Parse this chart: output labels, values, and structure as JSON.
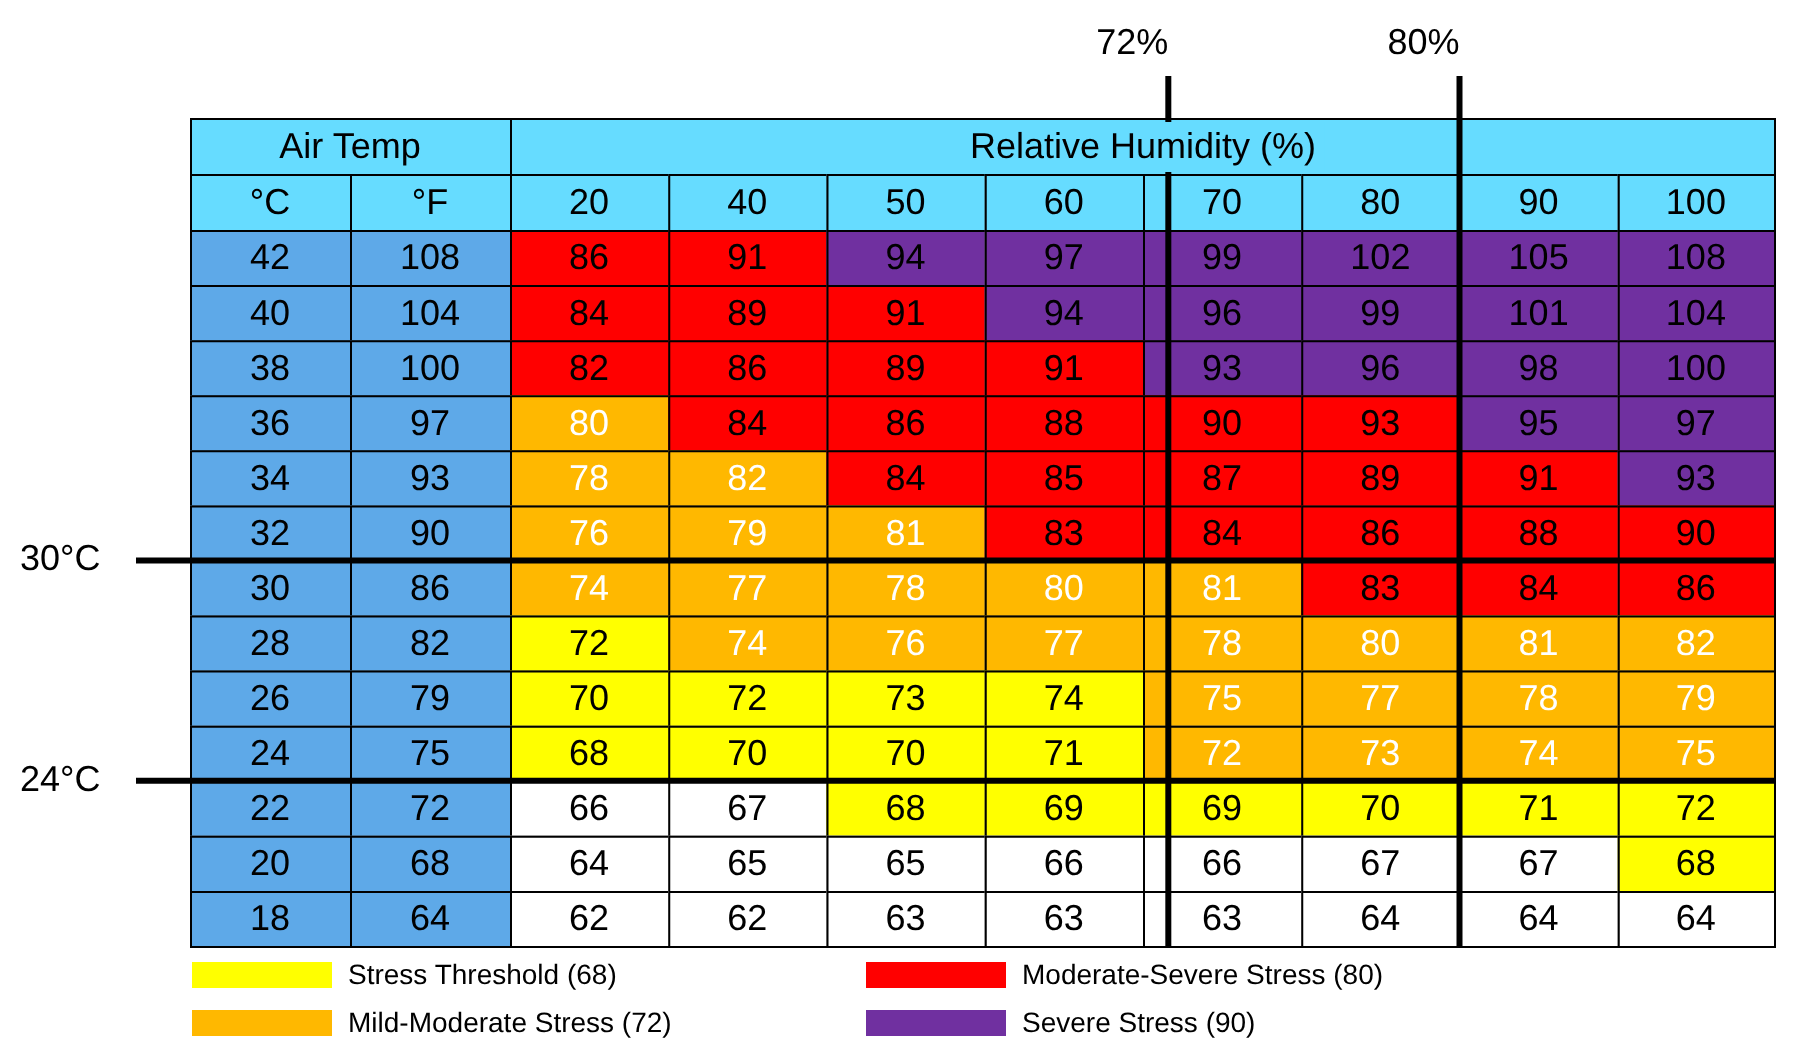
{
  "chart_data": {
    "type": "heatmap",
    "xlabel": "Relative Humidity (%)",
    "ylabel": "Air Temp",
    "data_labels": true,
    "annotations": [
      "°C",
      "°F",
      "30°C",
      "24°C",
      "72%",
      "80%"
    ],
    "categories": [
      "20",
      "40",
      "50",
      "60",
      "70",
      "80",
      "90",
      "100"
    ],
    "y_categories": [
      "42",
      "40",
      "38",
      "36",
      "34",
      "32",
      "30",
      "28",
      "26",
      "24",
      "22",
      "20",
      "18"
    ],
    "y2_categories": [
      "108",
      "104",
      "100",
      "97",
      "93",
      "90",
      "86",
      "82",
      "79",
      "75",
      "72",
      "68",
      "64"
    ],
    "cells": [
      [
        86,
        91,
        94,
        97,
        99,
        102,
        105,
        108
      ],
      [
        84,
        89,
        91,
        94,
        96,
        99,
        101,
        104
      ],
      [
        82,
        86,
        89,
        91,
        93,
        96,
        98,
        100
      ],
      [
        80,
        84,
        86,
        88,
        90,
        93,
        95,
        97
      ],
      [
        78,
        82,
        84,
        85,
        87,
        89,
        91,
        93
      ],
      [
        76,
        79,
        81,
        83,
        84,
        86,
        88,
        90
      ],
      [
        74,
        77,
        78,
        80,
        81,
        83,
        84,
        86
      ],
      [
        72,
        74,
        76,
        77,
        78,
        80,
        81,
        82
      ],
      [
        70,
        72,
        73,
        74,
        75,
        77,
        78,
        79
      ],
      [
        68,
        70,
        70,
        71,
        72,
        73,
        74,
        75
      ],
      [
        66,
        67,
        68,
        69,
        69,
        70,
        71,
        72
      ],
      [
        64,
        65,
        65,
        66,
        66,
        67,
        67,
        68
      ],
      [
        62,
        62,
        63,
        63,
        63,
        64,
        64,
        64
      ]
    ],
    "colors": [
      [
        "#ff0000",
        "#ff0000",
        "#7030a0",
        "#7030a0",
        "#7030a0",
        "#7030a0",
        "#7030a0",
        "#7030a0"
      ],
      [
        "#ff0000",
        "#ff0000",
        "#ff0000",
        "#7030a0",
        "#7030a0",
        "#7030a0",
        "#7030a0",
        "#7030a0"
      ],
      [
        "#ff0000",
        "#ff0000",
        "#ff0000",
        "#ff0000",
        "#7030a0",
        "#7030a0",
        "#7030a0",
        "#7030a0"
      ],
      [
        "#ffb800",
        "#ff0000",
        "#ff0000",
        "#ff0000",
        "#ff0000",
        "#ff0000",
        "#7030a0",
        "#7030a0"
      ],
      [
        "#ffb800",
        "#ffb800",
        "#ff0000",
        "#ff0000",
        "#ff0000",
        "#ff0000",
        "#ff0000",
        "#7030a0"
      ],
      [
        "#ffb800",
        "#ffb800",
        "#ffb800",
        "#ff0000",
        "#ff0000",
        "#ff0000",
        "#ff0000",
        "#ff0000"
      ],
      [
        "#ffb800",
        "#ffb800",
        "#ffb800",
        "#ffb800",
        "#ffb800",
        "#ff0000",
        "#ff0000",
        "#ff0000"
      ],
      [
        "#ffff00",
        "#ffb800",
        "#ffb800",
        "#ffb800",
        "#ffb800",
        "#ffb800",
        "#ffb800",
        "#ffb800"
      ],
      [
        "#ffff00",
        "#ffff00",
        "#ffff00",
        "#ffff00",
        "#ffb800",
        "#ffb800",
        "#ffb800",
        "#ffb800"
      ],
      [
        "#ffff00",
        "#ffff00",
        "#ffff00",
        "#ffff00",
        "#ffb800",
        "#ffb800",
        "#ffb800",
        "#ffb800"
      ],
      [
        "#ffffff",
        "#ffffff",
        "#ffff00",
        "#ffff00",
        "#ffff00",
        "#ffff00",
        "#ffff00",
        "#ffff00"
      ],
      [
        "#ffffff",
        "#ffffff",
        "#ffffff",
        "#ffffff",
        "#ffffff",
        "#ffffff",
        "#ffffff",
        "#ffff00"
      ],
      [
        "#ffffff",
        "#ffffff",
        "#ffffff",
        "#ffffff",
        "#ffffff",
        "#ffffff",
        "#ffffff",
        "#ffffff"
      ]
    ],
    "series": [
      {
        "name": "Stress Threshold (68)",
        "color": "#ffff00",
        "values": [
          null,
          null,
          null,
          null,
          null,
          null,
          null,
          null
        ]
      },
      {
        "name": "Mild-Moderate Stress (72)",
        "color": "#ffb800",
        "values": [
          null,
          null,
          null,
          null,
          null,
          null,
          null,
          null
        ]
      },
      {
        "name": "Moderate-Severe Stress (80)",
        "color": "#ff0000",
        "values": [
          null,
          null,
          null,
          null,
          null,
          null,
          null,
          null
        ]
      },
      {
        "name": "Severe Stress (90)",
        "color": "#7030a0",
        "values": [
          null,
          null,
          null,
          null,
          null,
          null,
          null,
          null
        ]
      }
    ],
    "legend": "bottom"
  }
}
